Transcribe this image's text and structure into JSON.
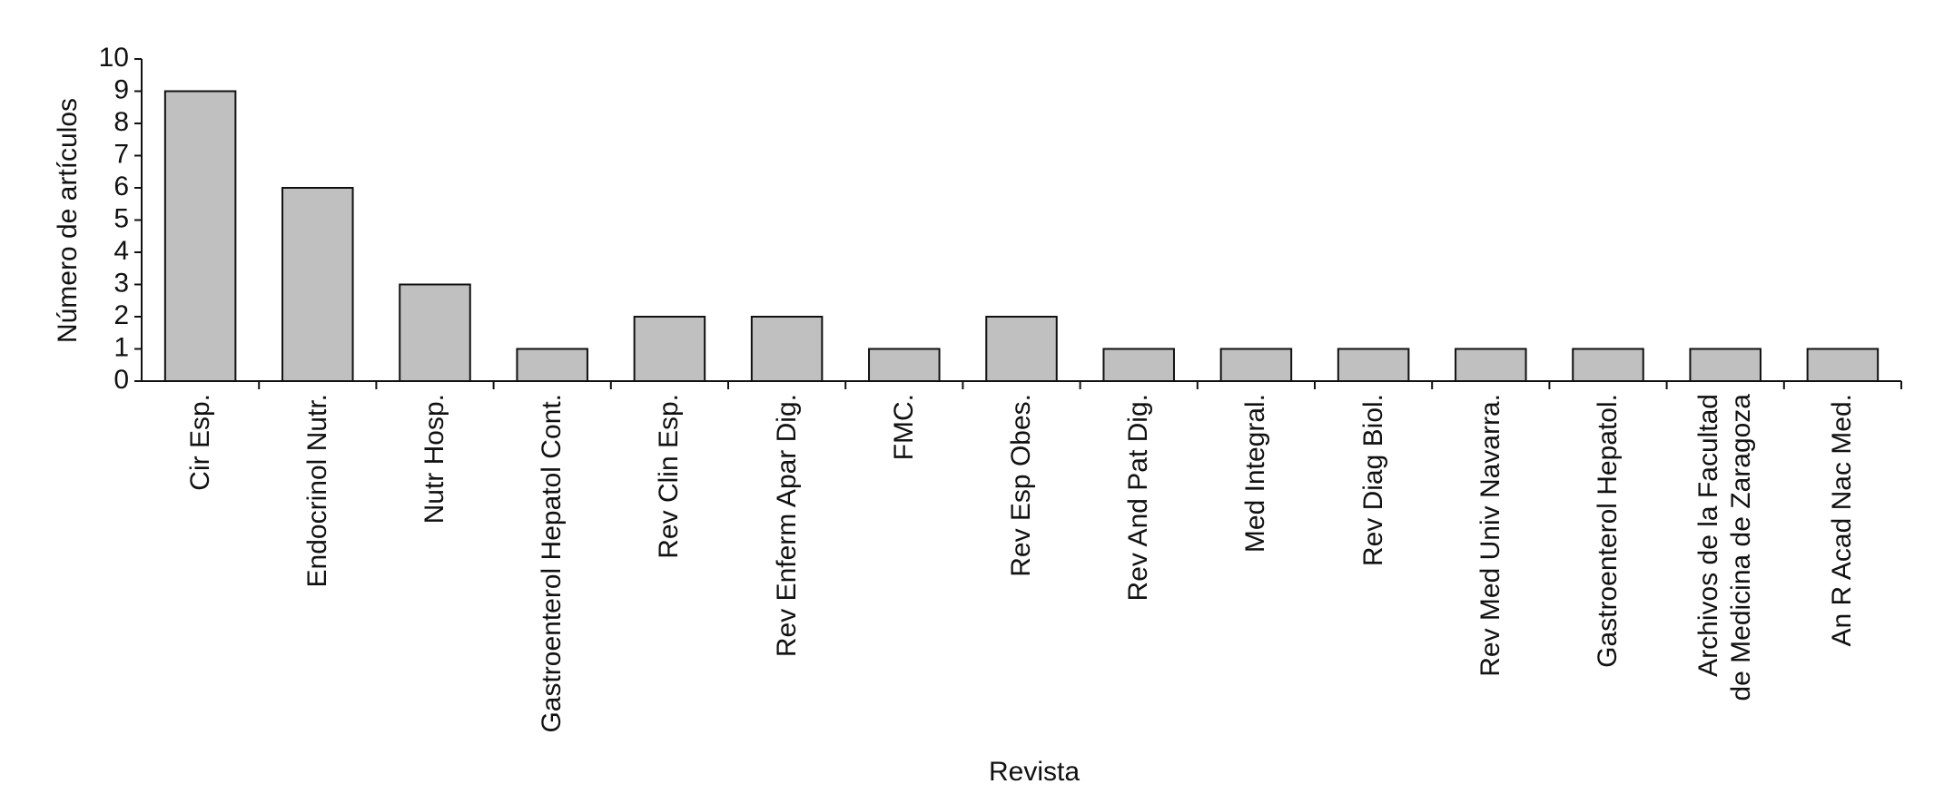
{
  "chart_data": {
    "type": "bar",
    "x_label": "Revista",
    "y_label": "Número de artículos",
    "categories": [
      "Cir Esp.",
      "Endocrinol Nutr.",
      "Nutr Hosp.",
      "Gastroenterol Hepatol Cont.",
      "Rev Clin Esp.",
      "Rev Enferm Apar Dig.",
      "FMC.",
      "Rev Esp Obes.",
      "Rev And Pat Dig.",
      "Med Integral.",
      "Rev Diag Biol.",
      "Rev Med Univ Navarra.",
      "Gastroenterol Hepatol.",
      "Archivos de la Facultad\nde Medicina de Zaragoza",
      "An R Acad Nac Med."
    ],
    "values": [
      9,
      6,
      3,
      1,
      2,
      2,
      1,
      2,
      1,
      1,
      1,
      1,
      1,
      1,
      1
    ],
    "color": "#c0c0c0",
    "ylim": [
      0,
      10
    ],
    "yticks": [
      0,
      1,
      2,
      3,
      4,
      5,
      6,
      7,
      8,
      9,
      10
    ],
    "grid": false
  }
}
